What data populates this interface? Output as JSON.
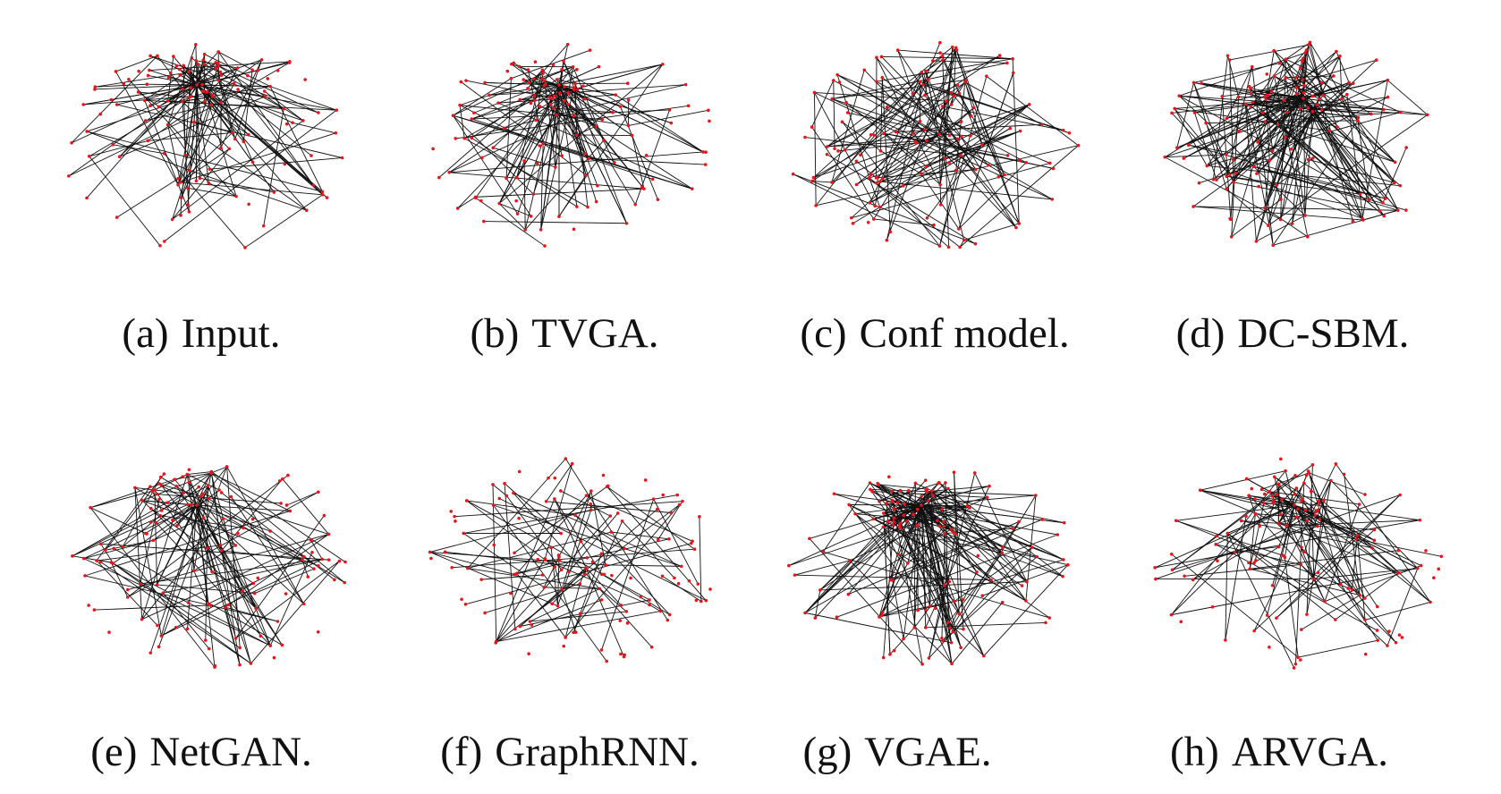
{
  "figure": {
    "node_color": "#e8141c",
    "edge_color": "#111111",
    "panels": [
      {
        "label": "(a)",
        "caption": "Input."
      },
      {
        "label": "(b)",
        "caption": "TVGA."
      },
      {
        "label": "(c)",
        "caption": "Conf model."
      },
      {
        "label": "(d)",
        "caption": "DC-SBM."
      },
      {
        "label": "(e)",
        "caption": "NetGAN."
      },
      {
        "label": "(f)",
        "caption": "GraphRNN."
      },
      {
        "label": "(g)",
        "caption": "VGAE."
      },
      {
        "label": "(h)",
        "caption": "ARVGA."
      }
    ]
  }
}
